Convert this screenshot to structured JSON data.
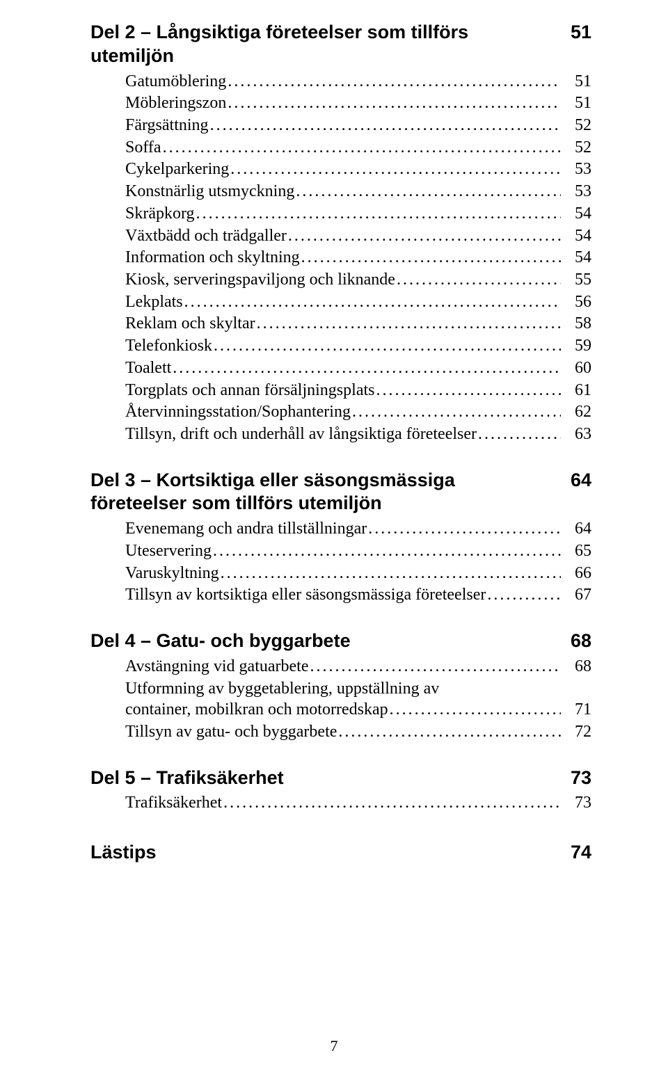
{
  "page_number": "7",
  "sections": [
    {
      "title": "Del 2 – Långsiktiga företeelser som tillförs utemiljön",
      "page": "51",
      "entries": [
        {
          "label": "Gatumöblering",
          "page": "51"
        },
        {
          "label": "Möbleringszon",
          "page": "51"
        },
        {
          "label": "Färgsättning",
          "page": "52"
        },
        {
          "label": "Soffa",
          "page": "52"
        },
        {
          "label": "Cykelparkering",
          "page": "53"
        },
        {
          "label": "Konstnärlig utsmyckning",
          "page": "53"
        },
        {
          "label": "Skräpkorg",
          "page": "54"
        },
        {
          "label": "Växtbädd och trädgaller",
          "page": "54"
        },
        {
          "label": "Information och skyltning",
          "page": "54"
        },
        {
          "label": "Kiosk, serveringspaviljong och liknande",
          "page": "55"
        },
        {
          "label": "Lekplats",
          "page": "56"
        },
        {
          "label": "Reklam och skyltar",
          "page": "58"
        },
        {
          "label": "Telefonkiosk",
          "page": "59"
        },
        {
          "label": "Toalett",
          "page": "60"
        },
        {
          "label": "Torgplats och annan försäljningsplats",
          "page": "61"
        },
        {
          "label": "Återvinningsstation/Sophantering",
          "page": "62"
        },
        {
          "label": "Tillsyn, drift och underhåll av långsiktiga företeelser",
          "page": "63"
        }
      ]
    },
    {
      "title": "Del 3 – Kortsiktiga eller säsongsmässiga företeelser som tillförs utemiljön",
      "page": "64",
      "entries": [
        {
          "label": "Evenemang och andra tillställningar",
          "page": "64"
        },
        {
          "label": "Uteservering",
          "page": "65"
        },
        {
          "label": "Varuskyltning",
          "page": "66"
        },
        {
          "label": "Tillsyn av kortsiktiga eller säsongsmässiga företeelser",
          "page": "67"
        }
      ]
    },
    {
      "title": "Del 4 – Gatu- och byggarbete",
      "page": "68",
      "entries": [
        {
          "label": "Avstängning vid gatuarbete",
          "page": "68"
        },
        {
          "label_line1": "Utformning av byggetablering, uppställning av",
          "label_line2": "container, mobilkran och motorredskap",
          "page": "71"
        },
        {
          "label": "Tillsyn av gatu- och byggarbete",
          "page": "72"
        }
      ]
    },
    {
      "title": "Del 5 – Trafiksäkerhet",
      "page": "73",
      "entries": [
        {
          "label": "Trafiksäkerhet",
          "page": "73"
        }
      ]
    }
  ],
  "lastips": {
    "title": "Lästips",
    "page": "74"
  }
}
